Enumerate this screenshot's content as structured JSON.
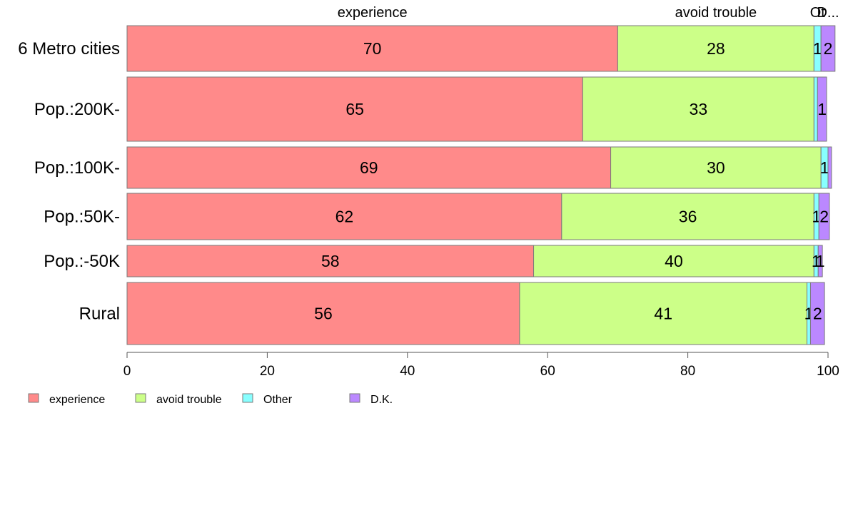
{
  "chart_data": {
    "type": "bar",
    "orientation": "horizontal",
    "stacked": true,
    "categories": [
      "6 Metro cities",
      "Pop.:200K-",
      "Pop.:100K-",
      "Pop.:50K-",
      "Pop.:-50K",
      "Rural"
    ],
    "series": [
      {
        "name": "experience",
        "color": "#ff8a8a",
        "values": [
          70,
          65,
          69,
          62,
          58,
          56
        ]
      },
      {
        "name": "avoid trouble",
        "color": "#ccff88",
        "values": [
          28,
          33,
          30,
          36,
          40,
          41
        ]
      },
      {
        "name": "Other",
        "color": "#88ffff",
        "values": [
          1,
          0.5,
          1,
          0.7,
          0.6,
          0.5
        ]
      },
      {
        "name": "D.K.",
        "color": "#bb88ff",
        "values": [
          2,
          1.3,
          0.5,
          1.5,
          0.6,
          2
        ]
      }
    ],
    "segment_labels": [
      [
        "70",
        "28",
        "1",
        "2"
      ],
      [
        "65",
        "33",
        "",
        "1"
      ],
      [
        "69",
        "30",
        "1",
        ""
      ],
      [
        "62",
        "36",
        "1",
        "2"
      ],
      [
        "58",
        "40",
        "1",
        "1"
      ],
      [
        "56",
        "41",
        "1",
        "2"
      ]
    ],
    "top_labels": [
      "experience",
      "avoid trouble",
      "Ot",
      "D..."
    ],
    "xlim": [
      0,
      100
    ],
    "xticks": [
      "0",
      "20",
      "40",
      "60",
      "80",
      "100"
    ],
    "grid": false,
    "legend": {
      "position": "bottom-left",
      "entries": [
        "experience",
        "avoid trouble",
        "Other",
        "D.K."
      ]
    }
  }
}
